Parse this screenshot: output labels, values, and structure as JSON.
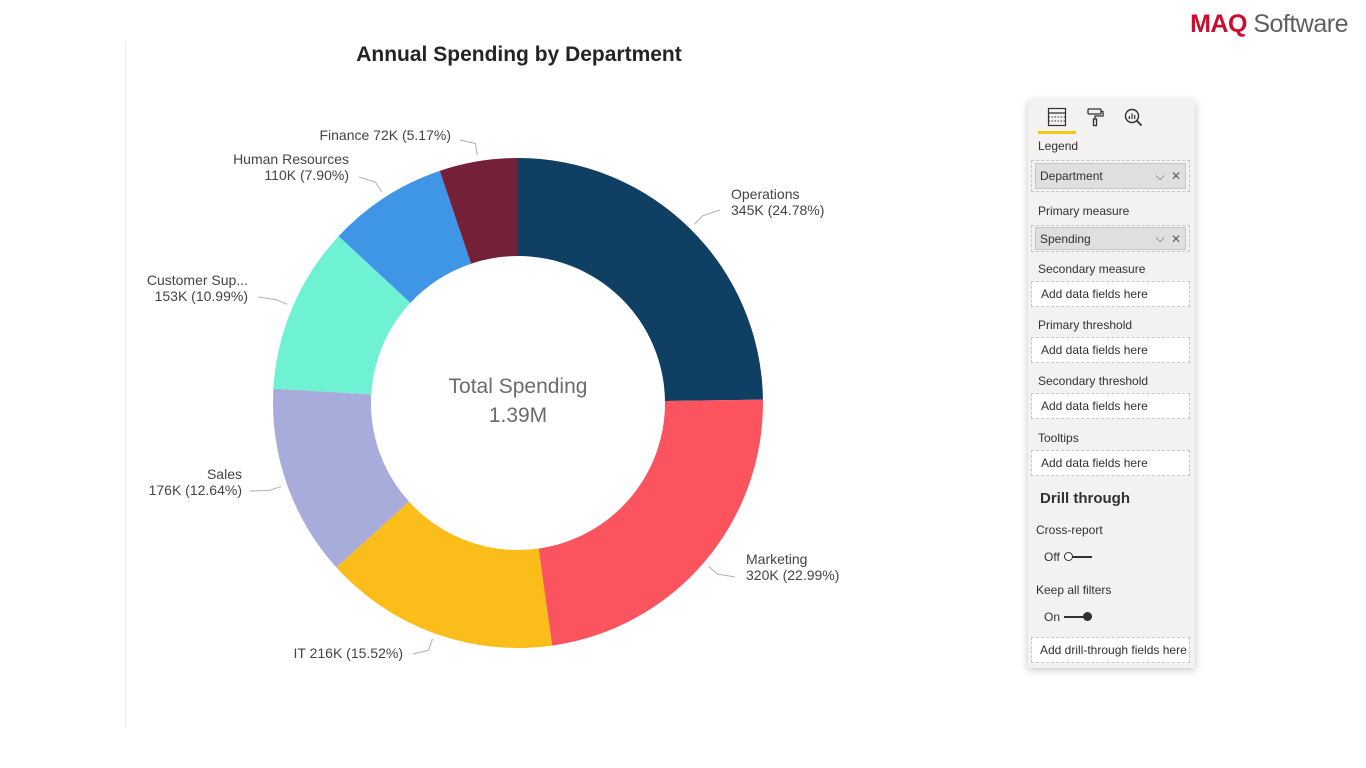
{
  "logo": {
    "brand": "MAQ",
    "rest": " Software"
  },
  "chart_data": {
    "type": "pie",
    "style": "donut",
    "title": "Annual Spending by Department",
    "center_label": "Total Spending",
    "center_value": "1.39M",
    "slices": [
      {
        "name": "Operations",
        "value": 345,
        "value_label": "345K",
        "percent": "24.78%",
        "color": "#0f3f63"
      },
      {
        "name": "Marketing",
        "value": 320,
        "value_label": "320K",
        "percent": "22.99%",
        "color": "#fc545f"
      },
      {
        "name": "IT",
        "value": 216,
        "value_label": "216K",
        "percent": "15.52%",
        "color": "#fbbd19"
      },
      {
        "name": "Sales",
        "value": 176,
        "value_label": "176K",
        "percent": "12.64%",
        "color": "#a8acda"
      },
      {
        "name": "Customer Sup...",
        "value": 153,
        "value_label": "153K",
        "percent": "10.99%",
        "color": "#6ef2d3"
      },
      {
        "name": "Human Resources",
        "value": 110,
        "value_label": "110K",
        "percent": "7.90%",
        "color": "#3f95e6"
      },
      {
        "name": "Finance",
        "value": 72,
        "value_label": "72K",
        "percent": "5.17%",
        "color": "#742138"
      }
    ],
    "labels": [
      {
        "lines": [
          "Operations",
          "345K (24.78%)"
        ]
      },
      {
        "lines": [
          "Marketing",
          "320K (22.99%)"
        ]
      },
      {
        "lines": [
          "IT 216K (15.52%)"
        ]
      },
      {
        "lines": [
          "Sales",
          "176K (12.64%)"
        ]
      },
      {
        "lines": [
          "Customer Sup...",
          "153K (10.99%)"
        ]
      },
      {
        "lines": [
          "Human Resources",
          "110K (7.90%)"
        ]
      },
      {
        "lines": [
          "Finance 72K (5.17%)"
        ]
      }
    ]
  },
  "pane": {
    "tabs": [
      {
        "icon": "fields-icon",
        "active": true
      },
      {
        "icon": "format-paint-roller-icon",
        "active": false
      },
      {
        "icon": "analytics-magnifier-icon",
        "active": false
      }
    ],
    "legend": {
      "label": "Legend",
      "field": "Department"
    },
    "primary_measure": {
      "label": "Primary measure",
      "field": "Spending"
    },
    "secondary_measure": {
      "label": "Secondary measure",
      "placeholder": "Add data fields here"
    },
    "primary_threshold": {
      "label": "Primary threshold",
      "placeholder": "Add data fields here"
    },
    "secondary_threshold": {
      "label": "Secondary threshold",
      "placeholder": "Add data fields here"
    },
    "tooltips": {
      "label": "Tooltips",
      "placeholder": "Add data fields here"
    },
    "drill_through": {
      "title": "Drill through",
      "cross_report": {
        "label": "Cross-report",
        "state": "Off"
      },
      "keep_filters": {
        "label": "Keep all filters",
        "state": "On"
      },
      "placeholder": "Add drill-through fields here"
    },
    "chevron_glyph": "⌵",
    "remove_glyph": "✕"
  }
}
